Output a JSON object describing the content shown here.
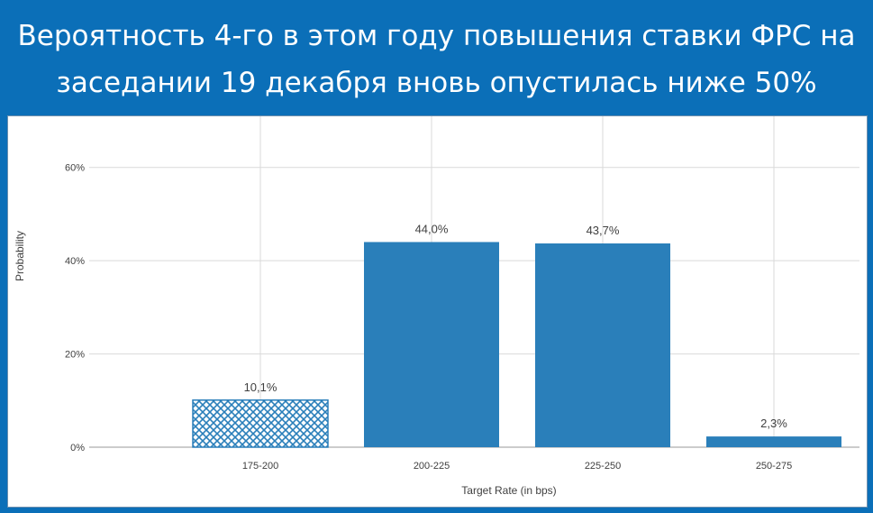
{
  "title": "Вероятность 4-го в этом году повышения ставки ФРС на заседании 19 декабря вновь опустилась ниже 50%",
  "chart_data": {
    "type": "bar",
    "xlabel": "Target Rate (in bps)",
    "ylabel": "Probability",
    "ylim": [
      0,
      70
    ],
    "yticks": [
      "0%",
      "20%",
      "40%",
      "60%"
    ],
    "ytick_values": [
      0,
      20,
      40,
      60
    ],
    "grid": true,
    "categories": [
      "175-200",
      "200-225",
      "225-250",
      "250-275"
    ],
    "values": [
      10.1,
      44.0,
      43.7,
      2.3
    ],
    "data_labels": [
      "10,1%",
      "44,0%",
      "43,7%",
      "2,3%"
    ],
    "patterns": [
      "crosshatch",
      "solid",
      "solid",
      "solid"
    ],
    "bar_color": "#2a7fba"
  }
}
